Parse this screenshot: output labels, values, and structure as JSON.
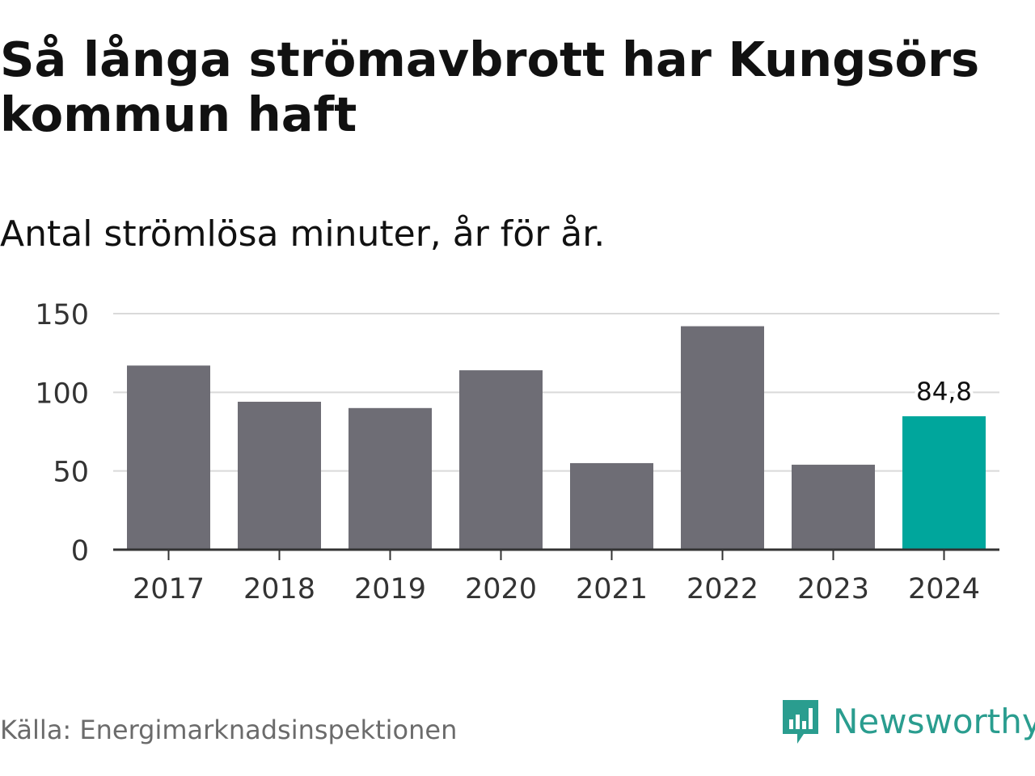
{
  "title": "Så långa strömavbrott har Kungsörs kommun haft",
  "subtitle": "Antal strömlösa minuter, år för år.",
  "source": "Källa: Energimarknadsinspektionen",
  "brand": {
    "name": "Newsworthy",
    "icon": "newsworthy-logo-icon"
  },
  "colors": {
    "bar": "#6e6d75",
    "highlight": "#00a69c",
    "grid": "#d9d9d9",
    "axis": "#333333"
  },
  "chart_data": {
    "type": "bar",
    "title": "Så långa strömavbrott har Kungsörs kommun haft",
    "subtitle": "Antal strömlösa minuter, år för år.",
    "xlabel": "",
    "ylabel": "",
    "categories": [
      "2017",
      "2018",
      "2019",
      "2020",
      "2021",
      "2022",
      "2023",
      "2024"
    ],
    "values": [
      117,
      94,
      90,
      114,
      55,
      142,
      54,
      84.8
    ],
    "ylim": [
      0,
      150
    ],
    "yticks": [
      0,
      50,
      100,
      150
    ],
    "grid": true,
    "highlight_index": 7,
    "data_labels": [
      {
        "index": 7,
        "text": "84,8"
      }
    ]
  }
}
